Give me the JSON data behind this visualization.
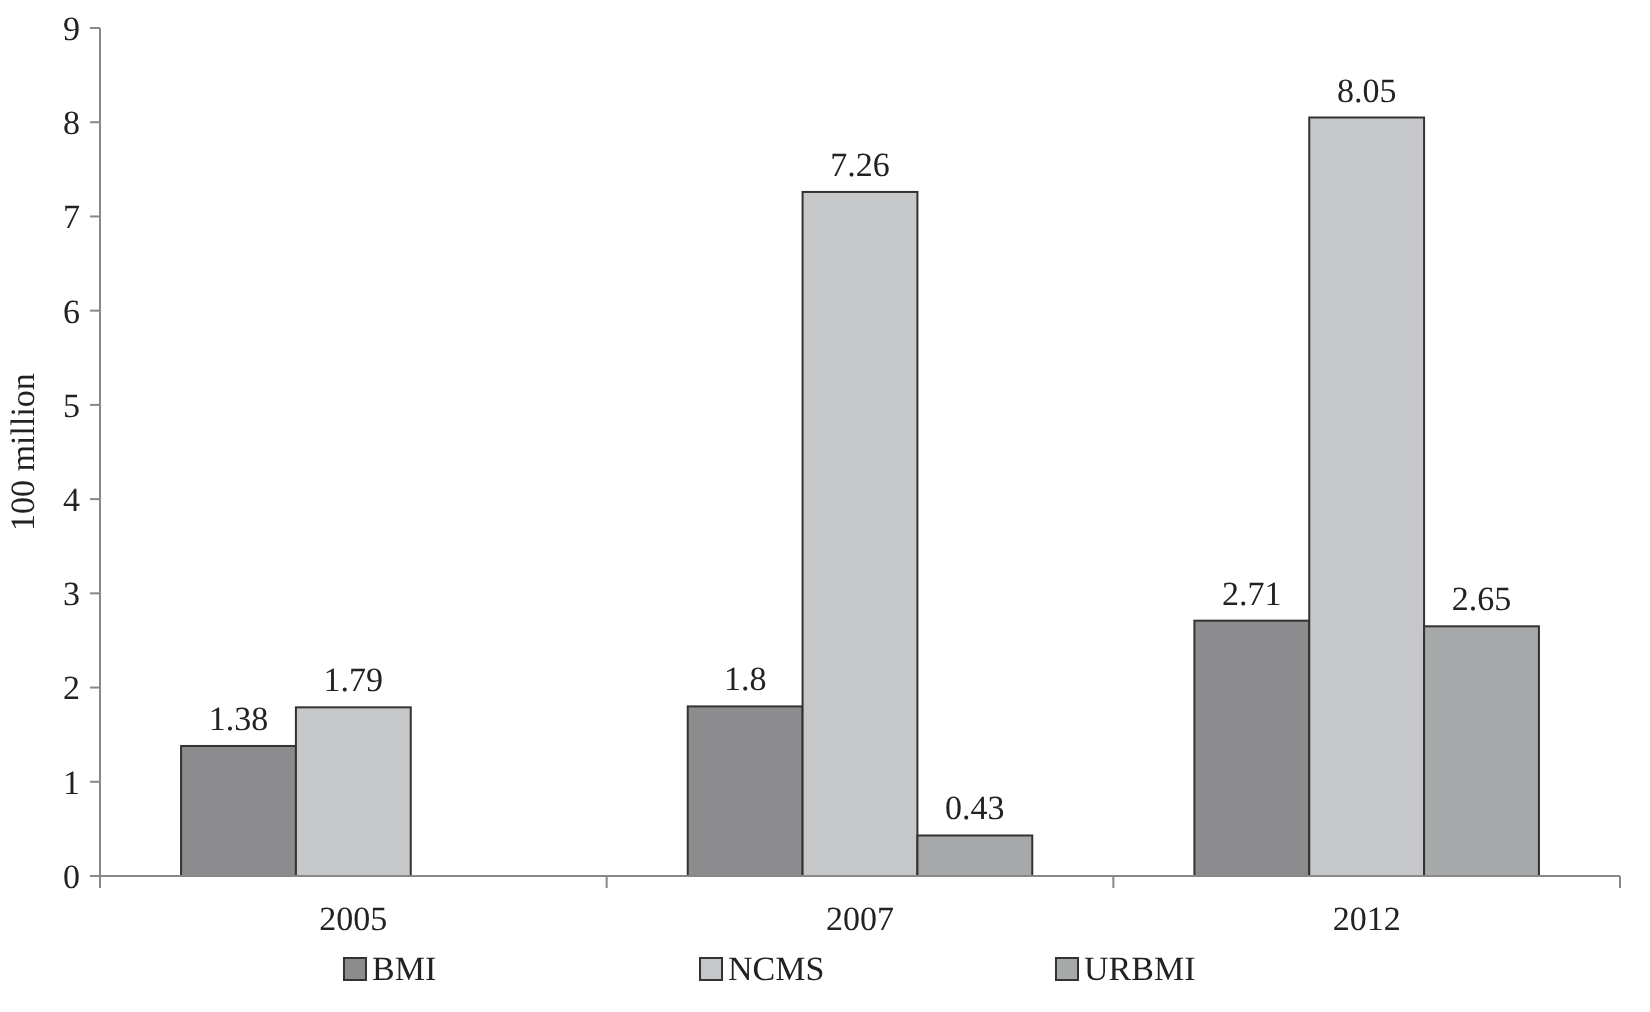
{
  "chart_data": {
    "type": "bar",
    "ylabel": "100 million",
    "categories": [
      "2005",
      "2007",
      "2012"
    ],
    "series": [
      {
        "name": "BMI",
        "color": "#8c8c8e",
        "values": [
          1.38,
          1.8,
          2.71
        ]
      },
      {
        "name": "NCMS",
        "color": "#c6c7c9",
        "values": [
          1.79,
          7.26,
          8.05
        ]
      },
      {
        "name": "URBMI",
        "color": "#a7a8aa",
        "values": [
          null,
          0.43,
          2.65
        ]
      }
    ],
    "ylim": [
      0,
      9
    ],
    "yticks": [
      0,
      1,
      2,
      3,
      4,
      5,
      6,
      7,
      8,
      9
    ],
    "data_labels": true,
    "legend": "bottom",
    "grid": false
  }
}
